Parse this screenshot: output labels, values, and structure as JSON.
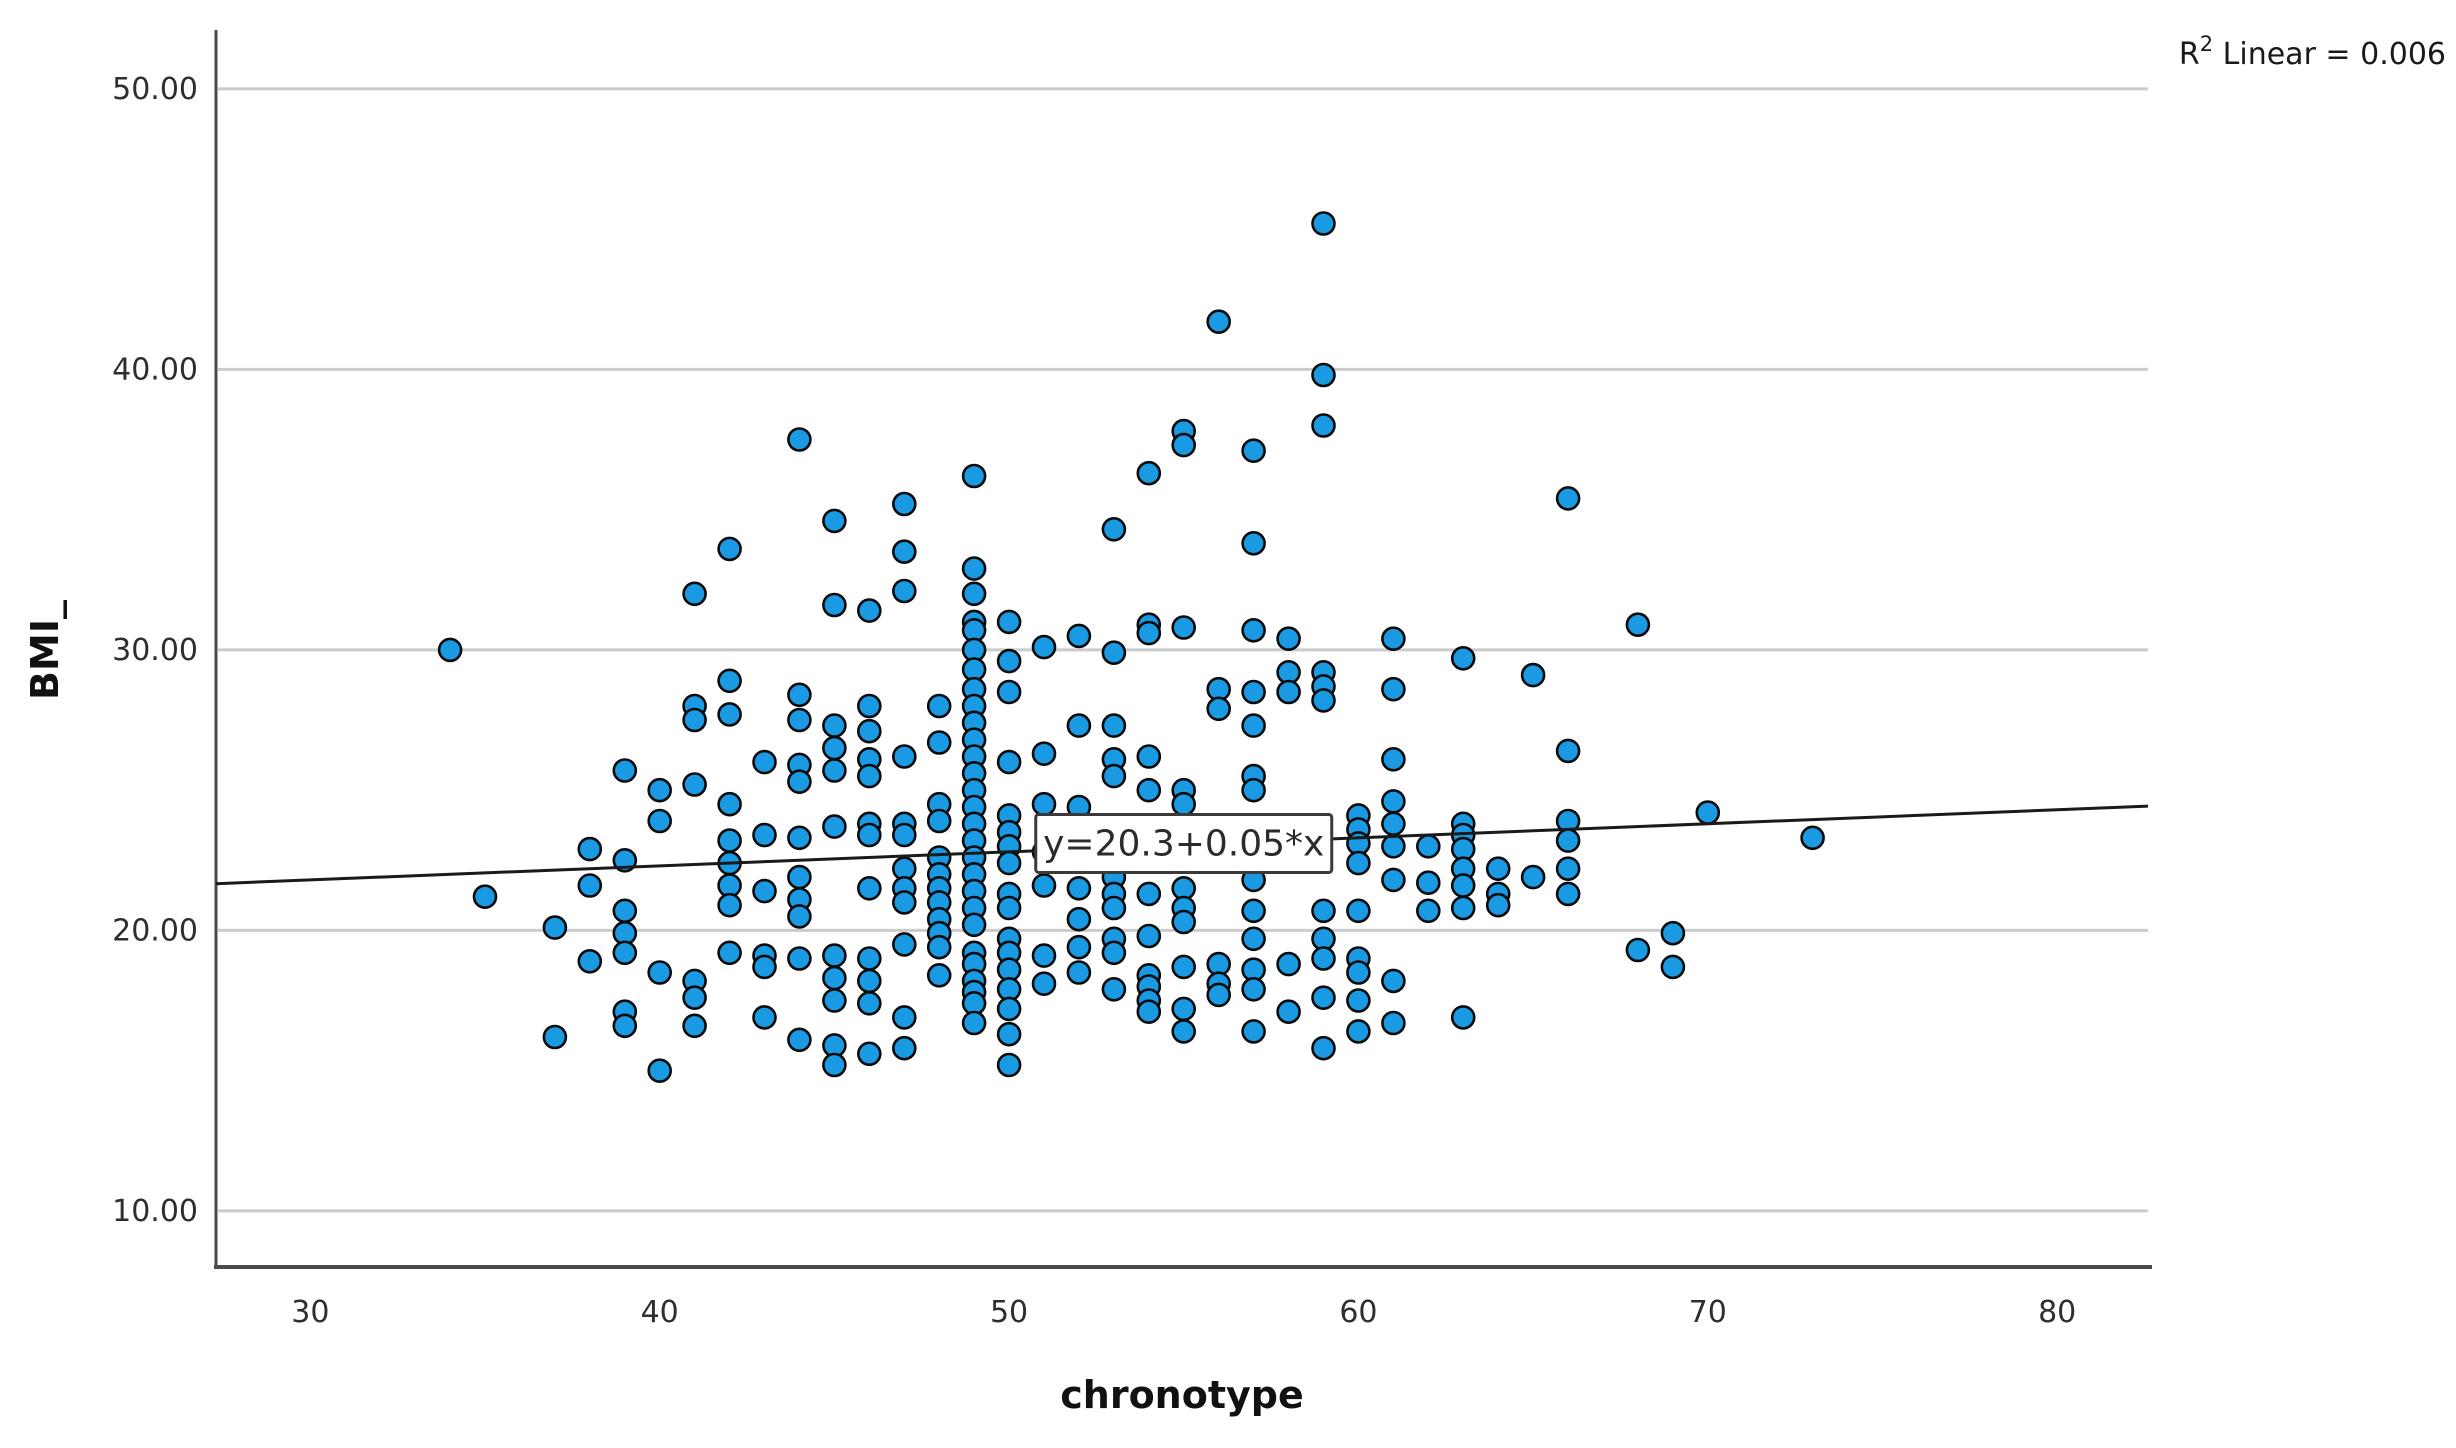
{
  "chart_data": {
    "type": "scatter",
    "title": "",
    "xlabel": "chronotype",
    "ylabel": "BMI_",
    "x_ticks": [
      30,
      40,
      50,
      60,
      70,
      80
    ],
    "y_ticks": [
      "10.00",
      "20.00",
      "30.00",
      "40.00",
      "50.00"
    ],
    "y_tick_values": [
      10,
      20,
      30,
      40,
      50
    ],
    "xlim": [
      27.3,
      82.6
    ],
    "ylim": [
      8.0,
      52.1
    ],
    "grid": "horizontal-only",
    "point_color": "#1B9AE4",
    "point_outline": "#0b0b0b",
    "regression": {
      "intercept": 20.3,
      "slope": 0.05
    },
    "annotation": "y=20.3+0.05*x",
    "annotation_anchor": [
      55.0,
      23.1
    ],
    "r2": {
      "prefix": "R",
      "sup": "2",
      "rest": "  Linear = 0.006"
    },
    "points": [
      [
        34,
        30.0
      ],
      [
        35,
        21.2
      ],
      [
        37,
        20.1
      ],
      [
        37,
        16.2
      ],
      [
        38,
        22.9
      ],
      [
        38,
        21.6
      ],
      [
        38,
        18.9
      ],
      [
        39,
        25.7
      ],
      [
        39,
        22.5
      ],
      [
        39,
        20.7
      ],
      [
        39,
        19.9
      ],
      [
        39,
        19.2
      ],
      [
        39,
        17.1
      ],
      [
        39,
        16.6
      ],
      [
        40,
        25.0
      ],
      [
        40,
        23.9
      ],
      [
        40,
        18.5
      ],
      [
        40,
        15.0
      ],
      [
        41,
        32.0
      ],
      [
        41,
        28.0
      ],
      [
        41,
        27.5
      ],
      [
        41,
        25.2
      ],
      [
        41,
        18.2
      ],
      [
        41,
        17.6
      ],
      [
        41,
        16.6
      ],
      [
        42,
        33.6
      ],
      [
        42,
        28.9
      ],
      [
        42,
        27.7
      ],
      [
        42,
        24.5
      ],
      [
        42,
        23.2
      ],
      [
        42,
        22.4
      ],
      [
        42,
        21.6
      ],
      [
        42,
        20.9
      ],
      [
        42,
        19.2
      ],
      [
        43,
        26.0
      ],
      [
        43,
        23.4
      ],
      [
        43,
        21.4
      ],
      [
        43,
        19.1
      ],
      [
        43,
        18.7
      ],
      [
        43,
        16.9
      ],
      [
        44,
        37.5
      ],
      [
        44,
        28.4
      ],
      [
        44,
        27.5
      ],
      [
        44,
        25.9
      ],
      [
        44,
        25.3
      ],
      [
        44,
        23.3
      ],
      [
        44,
        21.9
      ],
      [
        44,
        21.1
      ],
      [
        44,
        20.5
      ],
      [
        44,
        19.0
      ],
      [
        44,
        16.1
      ],
      [
        45,
        34.6
      ],
      [
        45,
        31.6
      ],
      [
        45,
        27.3
      ],
      [
        45,
        26.5
      ],
      [
        45,
        25.7
      ],
      [
        45,
        23.7
      ],
      [
        45,
        19.1
      ],
      [
        45,
        18.3
      ],
      [
        45,
        17.5
      ],
      [
        45,
        15.9
      ],
      [
        45,
        15.2
      ],
      [
        46,
        31.4
      ],
      [
        46,
        28.0
      ],
      [
        46,
        27.1
      ],
      [
        46,
        26.1
      ],
      [
        46,
        25.5
      ],
      [
        46,
        23.8
      ],
      [
        46,
        23.4
      ],
      [
        46,
        21.5
      ],
      [
        46,
        19.0
      ],
      [
        46,
        18.2
      ],
      [
        46,
        17.4
      ],
      [
        46,
        15.6
      ],
      [
        47,
        35.2
      ],
      [
        47,
        33.5
      ],
      [
        47,
        32.1
      ],
      [
        47,
        26.2
      ],
      [
        47,
        23.8
      ],
      [
        47,
        23.4
      ],
      [
        47,
        22.2
      ],
      [
        47,
        21.5
      ],
      [
        47,
        21.0
      ],
      [
        47,
        19.5
      ],
      [
        47,
        16.9
      ],
      [
        47,
        15.8
      ],
      [
        48,
        28.0
      ],
      [
        48,
        26.7
      ],
      [
        48,
        24.5
      ],
      [
        48,
        23.9
      ],
      [
        48,
        22.6
      ],
      [
        48,
        22.0
      ],
      [
        48,
        21.5
      ],
      [
        48,
        21.0
      ],
      [
        48,
        20.4
      ],
      [
        48,
        19.9
      ],
      [
        48,
        19.4
      ],
      [
        48,
        18.4
      ],
      [
        49,
        36.2
      ],
      [
        49,
        32.9
      ],
      [
        49,
        32.0
      ],
      [
        49,
        31.0
      ],
      [
        49,
        30.7
      ],
      [
        49,
        30.0
      ],
      [
        49,
        29.3
      ],
      [
        49,
        28.6
      ],
      [
        49,
        28.0
      ],
      [
        49,
        27.4
      ],
      [
        49,
        26.8
      ],
      [
        49,
        26.2
      ],
      [
        49,
        25.6
      ],
      [
        49,
        25.0
      ],
      [
        49,
        24.4
      ],
      [
        49,
        23.8
      ],
      [
        49,
        23.2
      ],
      [
        49,
        22.6
      ],
      [
        49,
        22.0
      ],
      [
        49,
        21.4
      ],
      [
        49,
        20.8
      ],
      [
        49,
        20.2
      ],
      [
        49,
        19.2
      ],
      [
        49,
        18.8
      ],
      [
        49,
        18.2
      ],
      [
        49,
        17.8
      ],
      [
        49,
        17.4
      ],
      [
        49,
        16.7
      ],
      [
        50,
        31.0
      ],
      [
        50,
        29.6
      ],
      [
        50,
        28.5
      ],
      [
        50,
        26.0
      ],
      [
        50,
        24.1
      ],
      [
        50,
        23.5
      ],
      [
        50,
        23.0
      ],
      [
        50,
        22.4
      ],
      [
        50,
        21.3
      ],
      [
        50,
        20.8
      ],
      [
        50,
        19.7
      ],
      [
        50,
        19.2
      ],
      [
        50,
        18.6
      ],
      [
        50,
        17.9
      ],
      [
        50,
        17.2
      ],
      [
        50,
        16.3
      ],
      [
        50,
        15.2
      ],
      [
        51,
        30.1
      ],
      [
        51,
        26.3
      ],
      [
        51,
        24.5
      ],
      [
        51,
        22.8
      ],
      [
        51,
        21.6
      ],
      [
        51,
        19.1
      ],
      [
        51,
        18.1
      ],
      [
        52,
        30.5
      ],
      [
        52,
        27.3
      ],
      [
        52,
        24.4
      ],
      [
        52,
        21.5
      ],
      [
        52,
        20.4
      ],
      [
        52,
        19.4
      ],
      [
        52,
        18.5
      ],
      [
        53,
        34.3
      ],
      [
        53,
        29.9
      ],
      [
        53,
        27.3
      ],
      [
        53,
        26.1
      ],
      [
        53,
        25.5
      ],
      [
        53,
        21.9
      ],
      [
        53,
        21.3
      ],
      [
        53,
        20.8
      ],
      [
        53,
        19.7
      ],
      [
        53,
        19.2
      ],
      [
        53,
        17.9
      ],
      [
        54,
        36.3
      ],
      [
        54,
        30.9
      ],
      [
        54,
        30.6
      ],
      [
        54,
        26.2
      ],
      [
        54,
        25.0
      ],
      [
        54,
        21.3
      ],
      [
        54,
        19.8
      ],
      [
        54,
        18.4
      ],
      [
        54,
        18.0
      ],
      [
        54,
        17.5
      ],
      [
        54,
        17.1
      ],
      [
        55,
        37.8
      ],
      [
        55,
        37.3
      ],
      [
        55,
        30.8
      ],
      [
        55,
        25.0
      ],
      [
        55,
        24.5
      ],
      [
        55,
        21.5
      ],
      [
        55,
        20.8
      ],
      [
        55,
        20.3
      ],
      [
        55,
        18.7
      ],
      [
        55,
        17.2
      ],
      [
        55,
        16.4
      ],
      [
        56,
        41.7
      ],
      [
        56,
        28.6
      ],
      [
        56,
        27.9
      ],
      [
        56,
        18.8
      ],
      [
        56,
        18.1
      ],
      [
        56,
        17.7
      ],
      [
        57,
        37.1
      ],
      [
        57,
        33.8
      ],
      [
        57,
        30.7
      ],
      [
        57,
        28.5
      ],
      [
        57,
        27.3
      ],
      [
        57,
        25.5
      ],
      [
        57,
        25.0
      ],
      [
        57,
        21.8
      ],
      [
        57,
        20.7
      ],
      [
        57,
        19.7
      ],
      [
        57,
        18.6
      ],
      [
        57,
        17.9
      ],
      [
        57,
        16.4
      ],
      [
        58,
        30.4
      ],
      [
        58,
        29.2
      ],
      [
        58,
        28.5
      ],
      [
        58,
        18.8
      ],
      [
        58,
        17.1
      ],
      [
        59,
        45.2
      ],
      [
        59,
        39.8
      ],
      [
        59,
        38.0
      ],
      [
        59,
        29.2
      ],
      [
        59,
        28.7
      ],
      [
        59,
        28.2
      ],
      [
        59,
        20.7
      ],
      [
        59,
        19.7
      ],
      [
        59,
        19.0
      ],
      [
        59,
        17.6
      ],
      [
        59,
        15.8
      ],
      [
        60,
        24.1
      ],
      [
        60,
        23.6
      ],
      [
        60,
        23.1
      ],
      [
        60,
        22.4
      ],
      [
        60,
        20.7
      ],
      [
        60,
        19.0
      ],
      [
        60,
        18.5
      ],
      [
        60,
        17.5
      ],
      [
        60,
        16.4
      ],
      [
        61,
        30.4
      ],
      [
        61,
        28.6
      ],
      [
        61,
        26.1
      ],
      [
        61,
        24.6
      ],
      [
        61,
        23.8
      ],
      [
        61,
        23.0
      ],
      [
        61,
        21.8
      ],
      [
        61,
        18.2
      ],
      [
        61,
        16.7
      ],
      [
        62,
        23.0
      ],
      [
        62,
        21.7
      ],
      [
        62,
        20.7
      ],
      [
        63,
        29.7
      ],
      [
        63,
        23.8
      ],
      [
        63,
        23.4
      ],
      [
        63,
        22.9
      ],
      [
        63,
        22.2
      ],
      [
        63,
        21.6
      ],
      [
        63,
        20.8
      ],
      [
        63,
        16.9
      ],
      [
        64,
        22.2
      ],
      [
        64,
        21.3
      ],
      [
        64,
        20.9
      ],
      [
        65,
        29.1
      ],
      [
        65,
        21.9
      ],
      [
        66,
        35.4
      ],
      [
        66,
        26.4
      ],
      [
        66,
        23.9
      ],
      [
        66,
        23.2
      ],
      [
        66,
        22.2
      ],
      [
        66,
        21.3
      ],
      [
        68,
        30.9
      ],
      [
        68,
        19.3
      ],
      [
        69,
        19.9
      ],
      [
        69,
        18.7
      ],
      [
        70,
        24.2
      ],
      [
        73,
        23.3
      ]
    ]
  }
}
